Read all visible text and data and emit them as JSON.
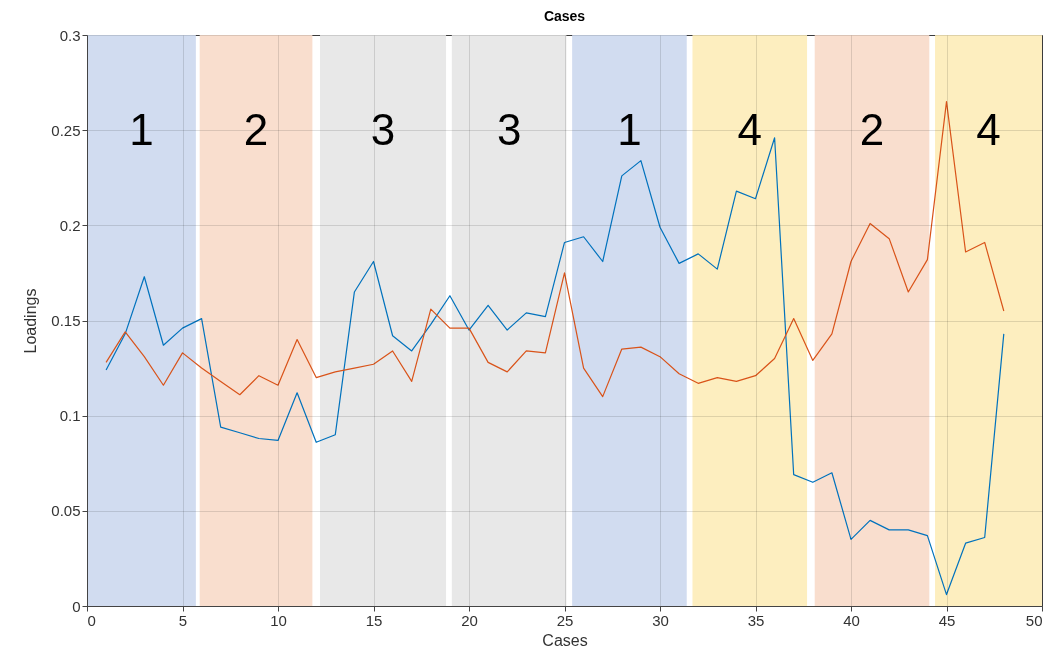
{
  "chart_data": {
    "type": "line",
    "title": "Cases",
    "xlabel": "Cases",
    "ylabel": "Loadings",
    "x": [
      1,
      2,
      3,
      4,
      5,
      6,
      7,
      8,
      9,
      10,
      11,
      12,
      13,
      14,
      15,
      16,
      17,
      18,
      19,
      20,
      21,
      22,
      23,
      24,
      25,
      26,
      27,
      28,
      29,
      30,
      31,
      32,
      33,
      34,
      35,
      36,
      37,
      38,
      39,
      40,
      41,
      42,
      43,
      44,
      45,
      46,
      47,
      48
    ],
    "series": [
      {
        "color": "#0072bd",
        "values": [
          0.124,
          0.143,
          0.173,
          0.137,
          0.146,
          0.151,
          0.094,
          0.091,
          0.088,
          0.087,
          0.112,
          0.086,
          0.09,
          0.165,
          0.181,
          0.142,
          0.134,
          0.148,
          0.163,
          0.145,
          0.158,
          0.145,
          0.154,
          0.152,
          0.191,
          0.194,
          0.181,
          0.226,
          0.234,
          0.199,
          0.18,
          0.185,
          0.177,
          0.218,
          0.214,
          0.246,
          0.069,
          0.065,
          0.07,
          0.035,
          0.045,
          0.04,
          0.04,
          0.037,
          0.006,
          0.033,
          0.036,
          0.143
        ]
      },
      {
        "color": "#d95319",
        "values": [
          0.128,
          0.144,
          0.131,
          0.116,
          0.133,
          0.125,
          0.118,
          0.111,
          0.121,
          0.116,
          0.14,
          0.12,
          0.123,
          0.125,
          0.127,
          0.134,
          0.118,
          0.156,
          0.146,
          0.146,
          0.128,
          0.123,
          0.134,
          0.133,
          0.175,
          0.125,
          0.11,
          0.135,
          0.136,
          0.131,
          0.122,
          0.117,
          0.12,
          0.118,
          0.121,
          0.13,
          0.151,
          0.129,
          0.143,
          0.181,
          0.201,
          0.193,
          0.165,
          0.182,
          0.265,
          0.186,
          0.191,
          0.155
        ]
      }
    ],
    "xlim": [
      0,
      50
    ],
    "xticks": [
      0,
      5,
      10,
      15,
      20,
      25,
      30,
      35,
      40,
      45,
      50
    ],
    "ylim": [
      0,
      0.3
    ],
    "yticks": [
      0,
      0.05,
      0.1,
      0.15,
      0.2,
      0.25,
      0.3
    ],
    "grid": true,
    "marker": "none",
    "line_style": "solid",
    "bands": [
      {
        "axis": "x",
        "from": 0,
        "to": 5.7,
        "label": "1",
        "color": "#d1dcf0"
      },
      {
        "axis": "x",
        "from": 5.9,
        "to": 11.8,
        "label": "2",
        "color": "#f9dece"
      },
      {
        "axis": "x",
        "from": 12.2,
        "to": 18.8,
        "label": "3",
        "color": "#e8e8e8"
      },
      {
        "axis": "x",
        "from": 19.1,
        "to": 25.1,
        "label": "3",
        "color": "#e8e8e8"
      },
      {
        "axis": "x",
        "from": 25.4,
        "to": 31.4,
        "label": "1",
        "color": "#d1dcf0"
      },
      {
        "axis": "x",
        "from": 31.7,
        "to": 37.7,
        "label": "4",
        "color": "#fdeebf"
      },
      {
        "axis": "x",
        "from": 38.1,
        "to": 44.1,
        "label": "2",
        "color": "#f9dece"
      },
      {
        "axis": "x",
        "from": 44.4,
        "to": 50,
        "label": "4",
        "color": "#fdeebf"
      }
    ]
  }
}
